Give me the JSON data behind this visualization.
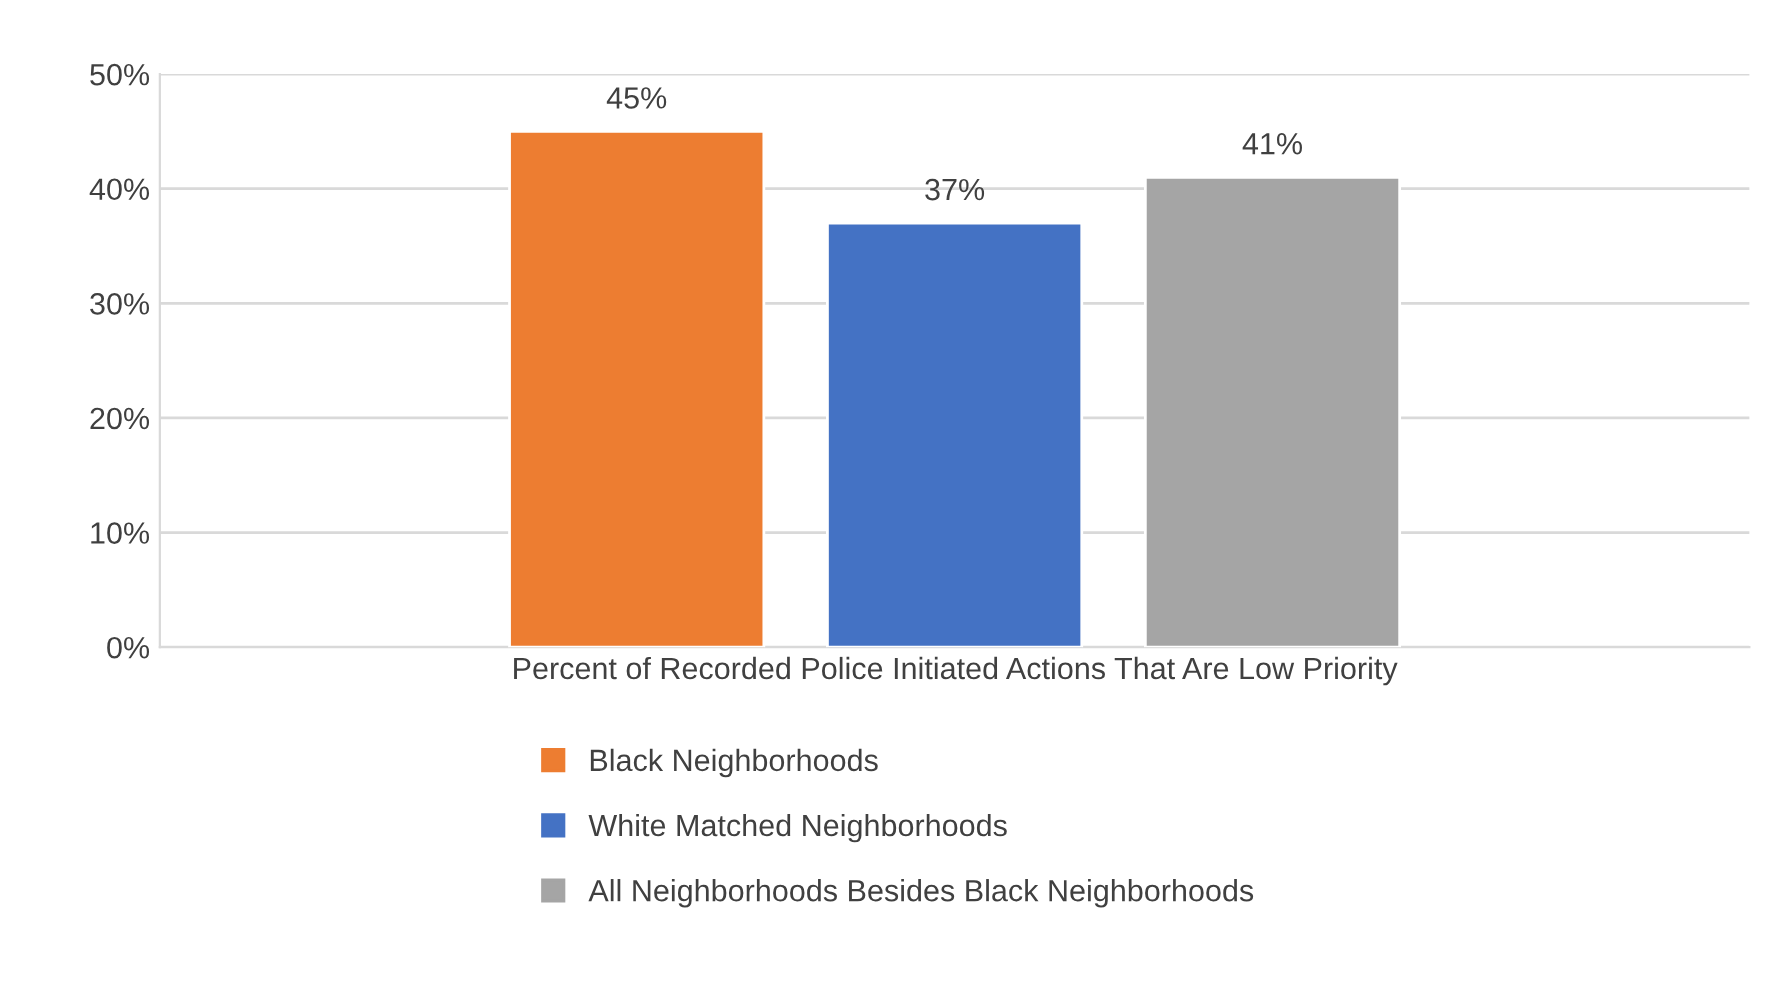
{
  "chart_data": {
    "type": "bar",
    "categories": [
      "Percent of Recorded Police Initiated Actions That Are Low Priority"
    ],
    "series": [
      {
        "name": "Black Neighborhoods",
        "color": "#ed7d31",
        "values": [
          45
        ]
      },
      {
        "name": "White Matched Neighborhoods",
        "color": "#4472c4",
        "values": [
          37
        ]
      },
      {
        "name": "All Neighborhoods Besides Black Neighborhoods",
        "color": "#a5a5a5",
        "values": [
          41
        ]
      }
    ],
    "ylim": [
      0,
      50
    ],
    "yticks": [
      {
        "value": 0,
        "label": "0%"
      },
      {
        "value": 10,
        "label": "10%"
      },
      {
        "value": 20,
        "label": "20%"
      },
      {
        "value": 30,
        "label": "30%"
      },
      {
        "value": 40,
        "label": "40%"
      },
      {
        "value": 50,
        "label": "50%"
      }
    ],
    "value_labels": [
      "45%",
      "37%",
      "41%"
    ],
    "grid": "y",
    "legend": "bottom"
  }
}
